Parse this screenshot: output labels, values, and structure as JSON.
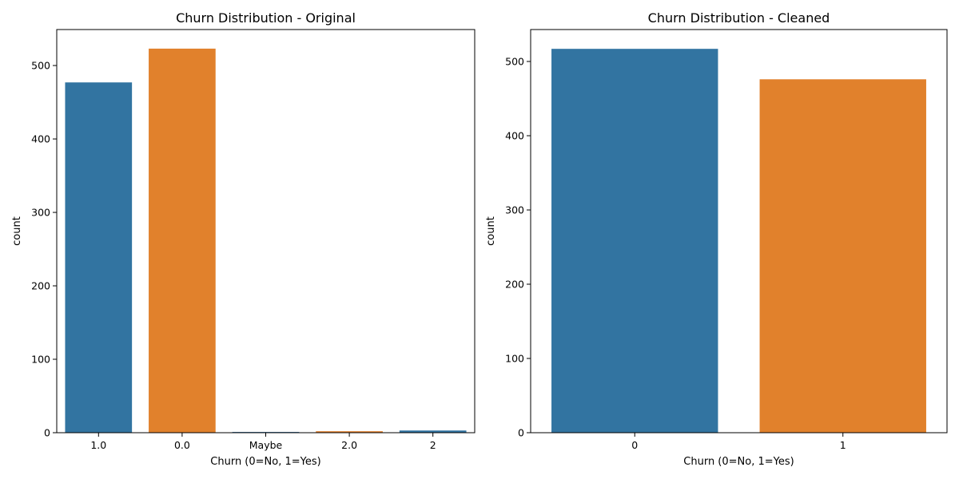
{
  "chart_data": [
    {
      "type": "bar",
      "title": "Churn Distribution - Original",
      "xlabel": "Churn (0=No, 1=Yes)",
      "ylabel": "count",
      "categories": [
        "1.0",
        "0.0",
        "Maybe",
        "2.0",
        "2"
      ],
      "values": [
        477,
        523,
        1,
        2,
        3
      ],
      "colors": [
        "#3274a1",
        "#e1812c",
        "#3274a1",
        "#e1812c",
        "#3274a1"
      ],
      "ylim": [
        0,
        549
      ],
      "yticks": [
        0,
        100,
        200,
        300,
        400,
        500
      ],
      "grid": false,
      "legend": "none"
    },
    {
      "type": "bar",
      "title": "Churn Distribution - Cleaned",
      "xlabel": "Churn (0=No, 1=Yes)",
      "ylabel": "count",
      "categories": [
        "0",
        "1"
      ],
      "values": [
        517,
        476
      ],
      "colors": [
        "#3274a1",
        "#e1812c"
      ],
      "ylim": [
        0,
        543
      ],
      "yticks": [
        0,
        100,
        200,
        300,
        400,
        500
      ],
      "grid": false,
      "legend": "none"
    }
  ]
}
